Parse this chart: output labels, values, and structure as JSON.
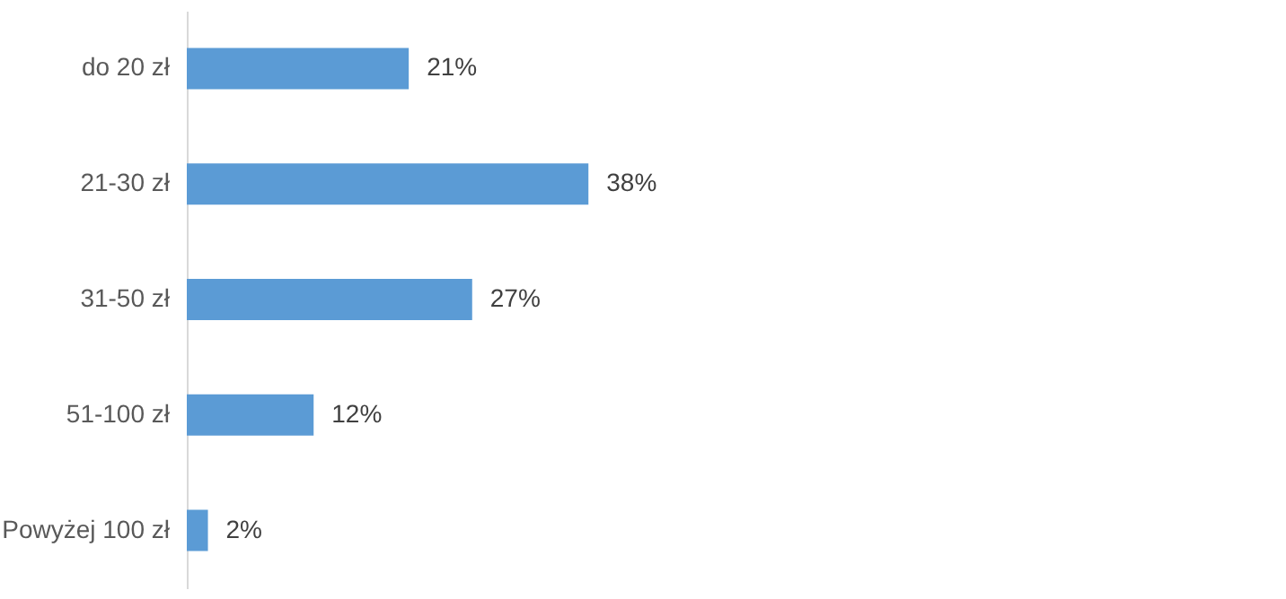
{
  "chart_data": {
    "type": "bar",
    "orientation": "horizontal",
    "categories": [
      "do 20 zł",
      "21-30 zł",
      "31-50 zł",
      "51-100 zł",
      "Powyżej 100 zł"
    ],
    "values": [
      21,
      38,
      27,
      12,
      2
    ],
    "value_labels": [
      "21%",
      "38%",
      "27%",
      "12%",
      "2%"
    ],
    "color": "#5b9bd5",
    "xlim": [
      0,
      104
    ]
  }
}
